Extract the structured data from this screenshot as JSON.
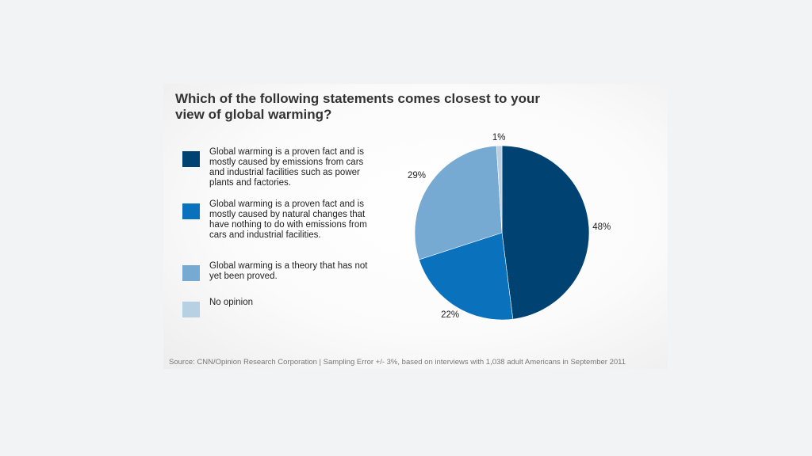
{
  "chart_data": {
    "type": "pie",
    "title": "Which of the following statements comes closest to your view of global warming?",
    "categories": [
      "Global warming is a proven fact and is mostly caused by emissions from cars and industrial facilities such as power plants and factories.",
      "Global warming is a proven fact and is mostly caused by natural changes that have nothing to do with emissions from cars and industrial facilities.",
      "Global warming is a theory that has not yet been proved.",
      "No opinion"
    ],
    "values": [
      48,
      22,
      29,
      1
    ],
    "value_labels": [
      "48%",
      "22%",
      "29%",
      "1%"
    ],
    "colors": [
      "#004373",
      "#0a72bd",
      "#77aad3",
      "#b7d0e3"
    ],
    "legend_position": "left",
    "source": "Source: CNN/Opinion Research Corporation | Sampling Error +/- 3%, based on interviews with 1,038 adult Americans in September 2011"
  }
}
